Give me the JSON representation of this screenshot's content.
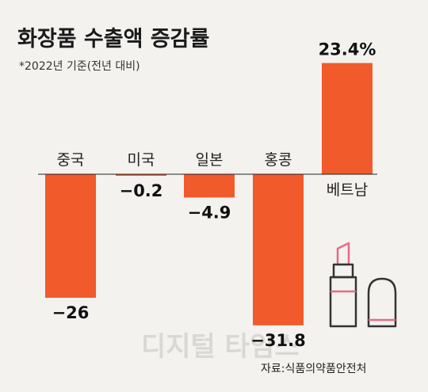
{
  "chart_data": {
    "type": "bar",
    "title": "화장품 수출액 증감률",
    "subtitle": "*2022년 기준(전년 대비)",
    "categories": [
      "중국",
      "미국",
      "일본",
      "홍콩",
      "베트남"
    ],
    "values": [
      -26,
      -0.2,
      -4.9,
      -31.8,
      23.4
    ],
    "value_labels": [
      "−26",
      "−0.2",
      "−4.9",
      "−31.8",
      "23.4%"
    ],
    "colors": {
      "bar": "#f15a2b",
      "baseline": "#222222",
      "icon_line": "#333333",
      "icon_accent": "#e86a86"
    }
  },
  "source": "자료:식품의약품안전처",
  "watermark": "디지털 타임스"
}
